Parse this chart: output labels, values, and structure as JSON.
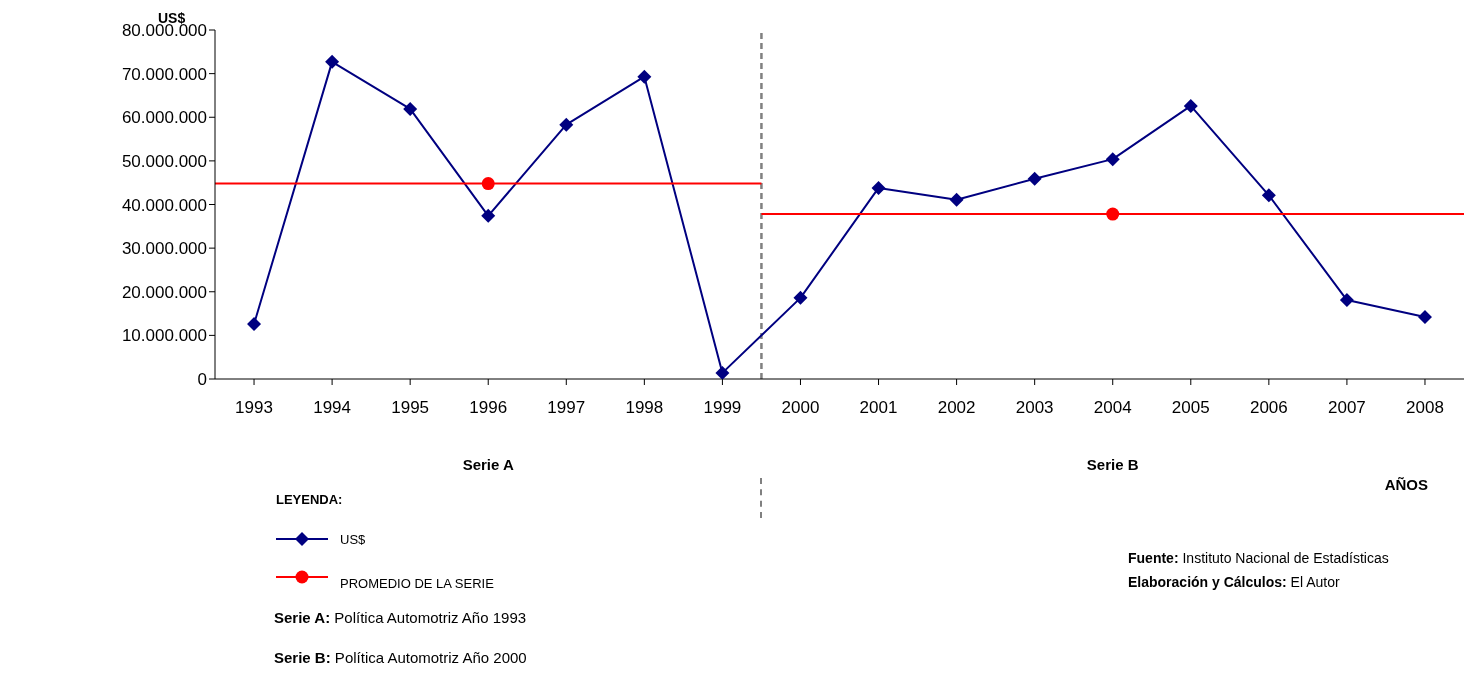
{
  "chart_data": {
    "type": "line",
    "ylabel": "US$",
    "xlabel": "AÑOS",
    "legend_title": "LEYENDA:",
    "legend": "bottom left",
    "grid": false,
    "x": [
      1993,
      1994,
      1995,
      1996,
      1997,
      1998,
      1999,
      2000,
      2001,
      2002,
      2003,
      2004,
      2005,
      2006,
      2007,
      2008
    ],
    "xlim": [
      1992.5,
      2008.5
    ],
    "xticks": [
      1993,
      1994,
      1995,
      1996,
      1997,
      1998,
      1999,
      2000,
      2001,
      2002,
      2003,
      2004,
      2005,
      2006,
      2007,
      2008
    ],
    "ylim": [
      0,
      80000000
    ],
    "yticks": [
      0,
      {
        "value": 10000000,
        "label": "10.000.000"
      },
      {
        "value": 20000000,
        "label": "20.000.000"
      },
      {
        "value": 30000000,
        "label": "30.000.000"
      },
      {
        "value": 40000000,
        "label": "40.000.000"
      },
      {
        "value": 50000000,
        "label": "50.000.000"
      },
      {
        "value": 60000000,
        "label": "60.000.000"
      },
      {
        "value": 70000000,
        "label": "70.000.000"
      },
      {
        "value": 80000000,
        "label": "80.000.000"
      }
    ],
    "series": [
      {
        "name": "US$",
        "color": "#000080",
        "marker": "diamond",
        "values": [
          12600000,
          72700000,
          61900000,
          37400000,
          58300000,
          69300000,
          1400000,
          18600000,
          43800000,
          41100000,
          45900000,
          50400000,
          62600000,
          42100000,
          18100000,
          14200000
        ]
      },
      {
        "color": "#ff0000",
        "marker": "none",
        "x": [
          1992.5,
          1999.5
        ],
        "values": [
          44800000,
          44800000
        ]
      },
      {
        "color": "#ff0000",
        "marker": "none",
        "x": [
          1999.5,
          2008.5
        ],
        "values": [
          37800000,
          37800000
        ]
      },
      {
        "name": "PROMEDIO DE LA SERIE",
        "type": "scatter",
        "color": "#ff0000",
        "marker": "circle",
        "x": [
          1996,
          2004
        ],
        "values": [
          44800000,
          37800000
        ]
      }
    ],
    "ref_lines": [
      {
        "axis": "x",
        "value": 1999.5,
        "color": "#808080",
        "line_style": "dashed"
      }
    ],
    "annotations": [
      "Serie A",
      "Serie B",
      "Fuente: Instituto Nacional de Estadísticas",
      "Elaboración y Cálculos: El Autor",
      "Serie A: Política Automotriz Año 1993",
      "Serie B: Política Automotriz Año 2000"
    ]
  }
}
